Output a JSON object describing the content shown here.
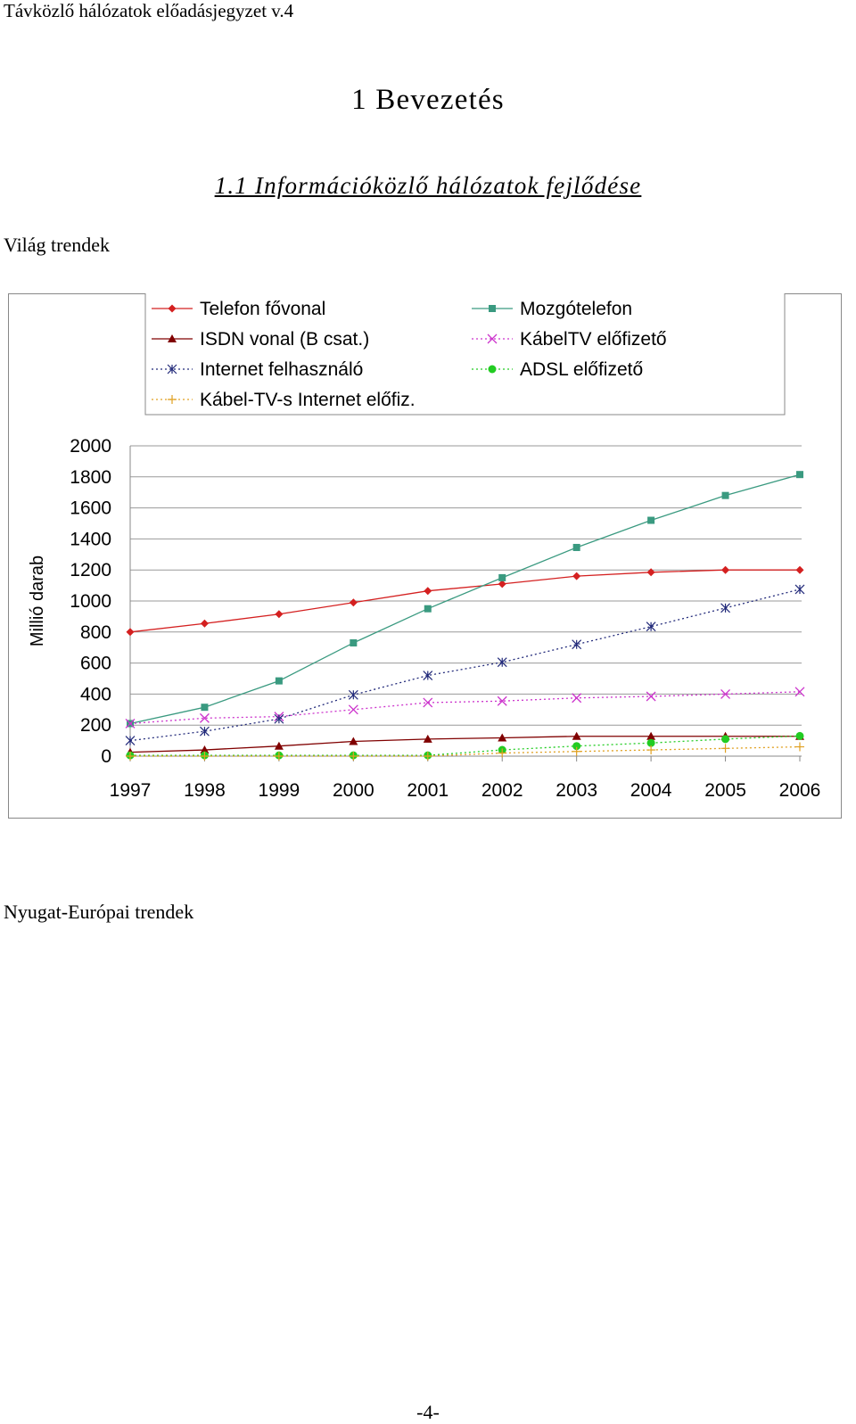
{
  "header": {
    "running_title": "Távközlő hálózatok előadásjegyzet v.4"
  },
  "heading1": "1  Bevezetés",
  "heading2": "1.1  Információközlő hálózatok fejlődése",
  "sections": {
    "world": "Világ trendek",
    "west_europe": "Nyugat-Európai trendek"
  },
  "page_number": "-4-",
  "chart_data": {
    "type": "line",
    "title": "",
    "xlabel": "",
    "ylabel": "Millió darab",
    "ylim": [
      0,
      2000
    ],
    "yticks": [
      0,
      200,
      400,
      600,
      800,
      1000,
      1200,
      1400,
      1600,
      1800,
      2000
    ],
    "grid": true,
    "legend_position": "top",
    "categories": [
      "1997",
      "1998",
      "1999",
      "2000",
      "2001",
      "2002",
      "2003",
      "2004",
      "2005",
      "2006"
    ],
    "series": [
      {
        "name": "Telefon fővonal",
        "marker": "diamond",
        "color": "#d42020",
        "dash": "solid",
        "values": [
          800,
          855,
          915,
          990,
          1065,
          1110,
          1160,
          1185,
          1200,
          1200
        ]
      },
      {
        "name": "Mozgótelefon",
        "marker": "square",
        "color": "#3a9a80",
        "dash": "solid",
        "values": [
          210,
          315,
          485,
          730,
          950,
          1150,
          1345,
          1520,
          1680,
          1815
        ]
      },
      {
        "name": "ISDN vonal (B csat.)",
        "marker": "triangle",
        "color": "#800000",
        "dash": "solid",
        "values": [
          25,
          40,
          65,
          95,
          110,
          118,
          128,
          128,
          128,
          128
        ]
      },
      {
        "name": "KábelTV előfizető",
        "marker": "x",
        "color": "#cc33cc",
        "dash": "dot",
        "values": [
          210,
          245,
          255,
          300,
          345,
          355,
          375,
          385,
          400,
          415
        ]
      },
      {
        "name": "Internet felhasználó",
        "marker": "star",
        "color": "#222a7a",
        "dash": "dot",
        "values": [
          100,
          160,
          240,
          395,
          520,
          605,
          720,
          835,
          955,
          1075
        ]
      },
      {
        "name": "ADSL előfizető",
        "marker": "circle",
        "color": "#22cc22",
        "dash": "dot",
        "values": [
          5,
          5,
          5,
          5,
          5,
          40,
          65,
          85,
          110,
          130
        ]
      },
      {
        "name": "Kábel-TV-s Internet előfiz.",
        "marker": "plus",
        "color": "#e0a020",
        "dash": "dot",
        "values": [
          0,
          0,
          0,
          0,
          0,
          20,
          30,
          40,
          50,
          60
        ]
      }
    ]
  }
}
